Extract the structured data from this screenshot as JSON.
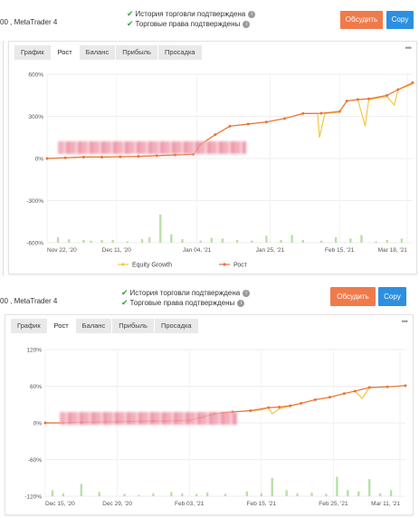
{
  "panels": [
    {
      "account_text": "00 , MetaTrader 4",
      "verified": [
        "История торговли подтверждена",
        "Торговые права подтверждены"
      ],
      "discuss_label": "Обсудить",
      "copy_label": "Copy",
      "tabs": [
        "График",
        "Рост",
        "Баланс",
        "Прибыль",
        "Просадка"
      ],
      "active_tab": "Рост",
      "more_label": "•••",
      "legend": [
        "Equity Growth",
        "Рост"
      ]
    },
    {
      "account_text": "00 , MetaTrader 4",
      "verified": [
        "История торговли подтверждена",
        "Торговые права подтверждены"
      ],
      "discuss_label": "Обсудить",
      "copy_label": "Copy",
      "tabs": [
        "График",
        "Рост",
        "Баланс",
        "Прибыль",
        "Просадка"
      ],
      "active_tab": "Рост",
      "more_label": "•••"
    }
  ],
  "colors": {
    "growth": "#e8743b",
    "equity": "#f2c744",
    "volume": "#b9e0a8",
    "discuss": "#f07a4a",
    "copy": "#2d8fe0"
  },
  "chart_data": [
    {
      "type": "line",
      "ylim": [
        -600,
        600
      ],
      "y_ticks": [
        "600%",
        "300%",
        "0%",
        "-300%",
        "-600%"
      ],
      "y_tick_values": [
        600,
        300,
        0,
        -300,
        -600
      ],
      "x_ticks": [
        "Nov 22, '20",
        "Dec 11, '20",
        "Jan 04, '21",
        "Jan 25, '21",
        "Feb 15, '21",
        "Mar 18, '21"
      ],
      "x_tick_pos": [
        0,
        0.19,
        0.41,
        0.61,
        0.8,
        0.985
      ],
      "series": [
        {
          "name": "Equity Growth",
          "points": [
            [
              0,
              0
            ],
            [
              0.05,
              5
            ],
            [
              0.1,
              10
            ],
            [
              0.15,
              10
            ],
            [
              0.2,
              12
            ],
            [
              0.25,
              15
            ],
            [
              0.3,
              20
            ],
            [
              0.35,
              25
            ],
            [
              0.4,
              30
            ],
            [
              0.42,
              100
            ],
            [
              0.46,
              170
            ],
            [
              0.5,
              230
            ],
            [
              0.55,
              245
            ],
            [
              0.6,
              260
            ],
            [
              0.65,
              285
            ],
            [
              0.7,
              320
            ],
            [
              0.74,
              320
            ],
            [
              0.745,
              150
            ],
            [
              0.76,
              320
            ],
            [
              0.8,
              330
            ],
            [
              0.82,
              410
            ],
            [
              0.85,
              420
            ],
            [
              0.87,
              230
            ],
            [
              0.88,
              420
            ],
            [
              0.93,
              440
            ],
            [
              0.95,
              380
            ],
            [
              0.96,
              490
            ],
            [
              1,
              530
            ]
          ]
        },
        {
          "name": "Рост",
          "points": [
            [
              0,
              0
            ],
            [
              0.05,
              5
            ],
            [
              0.1,
              10
            ],
            [
              0.15,
              10
            ],
            [
              0.2,
              12
            ],
            [
              0.25,
              15
            ],
            [
              0.3,
              20
            ],
            [
              0.35,
              25
            ],
            [
              0.4,
              30
            ],
            [
              0.42,
              100
            ],
            [
              0.46,
              170
            ],
            [
              0.5,
              230
            ],
            [
              0.55,
              245
            ],
            [
              0.6,
              260
            ],
            [
              0.65,
              285
            ],
            [
              0.7,
              320
            ],
            [
              0.75,
              322
            ],
            [
              0.8,
              335
            ],
            [
              0.82,
              410
            ],
            [
              0.85,
              420
            ],
            [
              0.88,
              425
            ],
            [
              0.93,
              450
            ],
            [
              0.96,
              490
            ],
            [
              1,
              540
            ]
          ]
        }
      ],
      "volume": [
        [
          0.03,
          -560
        ],
        [
          0.06,
          -575
        ],
        [
          0.1,
          -580
        ],
        [
          0.12,
          -585
        ],
        [
          0.15,
          -580
        ],
        [
          0.18,
          -580
        ],
        [
          0.22,
          -590
        ],
        [
          0.26,
          -575
        ],
        [
          0.28,
          -560
        ],
        [
          0.31,
          -400
        ],
        [
          0.34,
          -540
        ],
        [
          0.37,
          -575
        ],
        [
          0.42,
          -585
        ],
        [
          0.45,
          -565
        ],
        [
          0.48,
          -570
        ],
        [
          0.52,
          -580
        ],
        [
          0.56,
          -585
        ],
        [
          0.6,
          -550
        ],
        [
          0.64,
          -580
        ],
        [
          0.67,
          -545
        ],
        [
          0.7,
          -580
        ],
        [
          0.75,
          -585
        ],
        [
          0.79,
          -560
        ],
        [
          0.83,
          -570
        ],
        [
          0.86,
          -545
        ],
        [
          0.9,
          -590
        ],
        [
          0.93,
          -580
        ],
        [
          0.97,
          -570
        ]
      ]
    },
    {
      "type": "line",
      "ylim": [
        -120,
        120
      ],
      "y_ticks": [
        "120%",
        "60%",
        "0%",
        "-60%",
        "-120%"
      ],
      "y_tick_values": [
        120,
        60,
        0,
        -60,
        -120
      ],
      "x_ticks": [
        "Dec 15, '20",
        "Dec 29, '20",
        "Feb 03, '21",
        "Feb 15, '21",
        "Feb 25, '21",
        "Mar 11, '21"
      ],
      "x_tick_pos": [
        0,
        0.2,
        0.4,
        0.6,
        0.8,
        0.985
      ],
      "series": [
        {
          "name": "Equity Growth",
          "points": [
            [
              0,
              0
            ],
            [
              0.05,
              0
            ],
            [
              0.1,
              1
            ],
            [
              0.2,
              2
            ],
            [
              0.3,
              3
            ],
            [
              0.4,
              4
            ],
            [
              0.44,
              10
            ],
            [
              0.47,
              15
            ],
            [
              0.52,
              18
            ],
            [
              0.57,
              20
            ],
            [
              0.6,
              21
            ],
            [
              0.62,
              25
            ],
            [
              0.63,
              15
            ],
            [
              0.65,
              23
            ],
            [
              0.68,
              28
            ],
            [
              0.71,
              32
            ],
            [
              0.75,
              38
            ],
            [
              0.79,
              42
            ],
            [
              0.83,
              48
            ],
            [
              0.86,
              52
            ],
            [
              0.88,
              40
            ],
            [
              0.9,
              58
            ],
            [
              0.95,
              59
            ],
            [
              1,
              61
            ]
          ]
        },
        {
          "name": "Рост",
          "points": [
            [
              0,
              0
            ],
            [
              0.05,
              0
            ],
            [
              0.1,
              1
            ],
            [
              0.2,
              2
            ],
            [
              0.3,
              3
            ],
            [
              0.4,
              4
            ],
            [
              0.44,
              10
            ],
            [
              0.47,
              15
            ],
            [
              0.52,
              18
            ],
            [
              0.57,
              20
            ],
            [
              0.62,
              25
            ],
            [
              0.65,
              26
            ],
            [
              0.68,
              28
            ],
            [
              0.71,
              32
            ],
            [
              0.75,
              38
            ],
            [
              0.79,
              42
            ],
            [
              0.83,
              48
            ],
            [
              0.86,
              52
            ],
            [
              0.9,
              58
            ],
            [
              0.95,
              59
            ],
            [
              1,
              61
            ]
          ]
        }
      ],
      "volume": [
        [
          0.02,
          -110
        ],
        [
          0.05,
          -115
        ],
        [
          0.1,
          -100
        ],
        [
          0.15,
          -113
        ],
        [
          0.22,
          -116
        ],
        [
          0.26,
          -118
        ],
        [
          0.3,
          -115
        ],
        [
          0.35,
          -113
        ],
        [
          0.38,
          -115
        ],
        [
          0.42,
          -116
        ],
        [
          0.45,
          -114
        ],
        [
          0.5,
          -116
        ],
        [
          0.56,
          -112
        ],
        [
          0.6,
          -115
        ],
        [
          0.63,
          -90
        ],
        [
          0.67,
          -110
        ],
        [
          0.7,
          -115
        ],
        [
          0.74,
          -114
        ],
        [
          0.78,
          -116
        ],
        [
          0.81,
          -88
        ],
        [
          0.84,
          -110
        ],
        [
          0.87,
          -112
        ],
        [
          0.9,
          -92
        ],
        [
          0.93,
          -115
        ],
        [
          0.96,
          -110
        ]
      ]
    }
  ]
}
